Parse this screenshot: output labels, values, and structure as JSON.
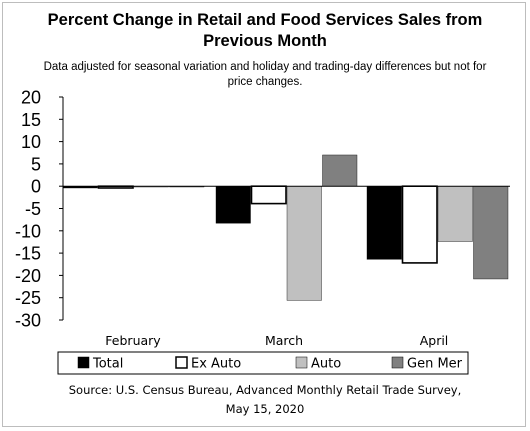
{
  "title_line1": "Percent Change in Retail and Food Services Sales from",
  "title_line2": "Previous Month",
  "subtitle_line1": "Data adjusted for seasonal variation and holiday and trading-day differences but not for",
  "subtitle_line2": "price changes.",
  "source_line1": "Source: U.S. Census Bureau, Advanced Monthly Retail Trade Survey,",
  "source_line2": "May 15, 2020",
  "chart_data": {
    "type": "bar",
    "categories": [
      "February",
      "March",
      "April"
    ],
    "ylim": [
      -30,
      20
    ],
    "yticks": [
      20,
      15,
      10,
      5,
      0,
      -5,
      -10,
      -15,
      -20,
      -25,
      -30
    ],
    "ytick_labels": [
      "20",
      "15",
      "10",
      "5",
      "0",
      "-5",
      "-10",
      "-15",
      "-20",
      "-25",
      "-30"
    ],
    "grid": false,
    "legend_position": "bottom",
    "series": [
      {
        "name": "Total",
        "color": "#000000",
        "values": [
          -0.4,
          -8.3,
          -16.4
        ]
      },
      {
        "name": "Ex Auto",
        "color": "#ffffff",
        "values": [
          -0.4,
          -3.9,
          -17.2
        ]
      },
      {
        "name": "Auto",
        "color": "#c0c0c0",
        "values": [
          0.0,
          -25.6,
          -12.4
        ]
      },
      {
        "name": "Gen Mer",
        "color": "#808080",
        "values": [
          0.0,
          7.0,
          -20.8
        ]
      }
    ]
  }
}
